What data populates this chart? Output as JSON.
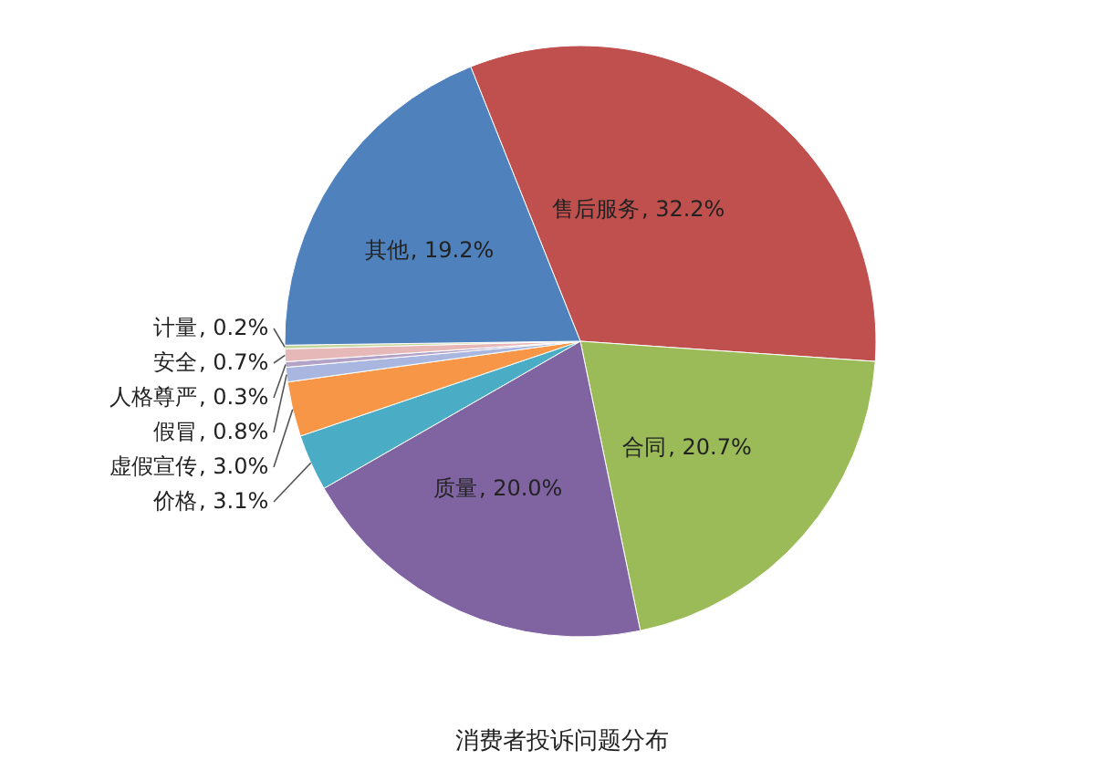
{
  "chart_data": {
    "type": "pie",
    "title": "消费者投诉问题分布",
    "categories": [
      "售后服务",
      "合同",
      "质量",
      "价格",
      "虚假宣传",
      "假冒",
      "人格尊严",
      "安全",
      "计量",
      "其他"
    ],
    "values": [
      32.2,
      20.7,
      20.0,
      3.1,
      3.0,
      0.8,
      0.3,
      0.7,
      0.2,
      19.2
    ],
    "colors": [
      "#c0504d",
      "#9bbb59",
      "#8064a2",
      "#4bacc6",
      "#f79646",
      "#a9b7e0",
      "#b3a2c7",
      "#e6b9b8",
      "#c3d69b",
      "#4f81bd"
    ],
    "value_labels": [
      ", 32.2%",
      ", 20.7%",
      ", 20.0%",
      ", 3.1%",
      ", 3.0%",
      ", 0.8%",
      ", 0.3%",
      ", 0.7%",
      ", 0.2%",
      ", 19.2%"
    ],
    "legend": false
  }
}
